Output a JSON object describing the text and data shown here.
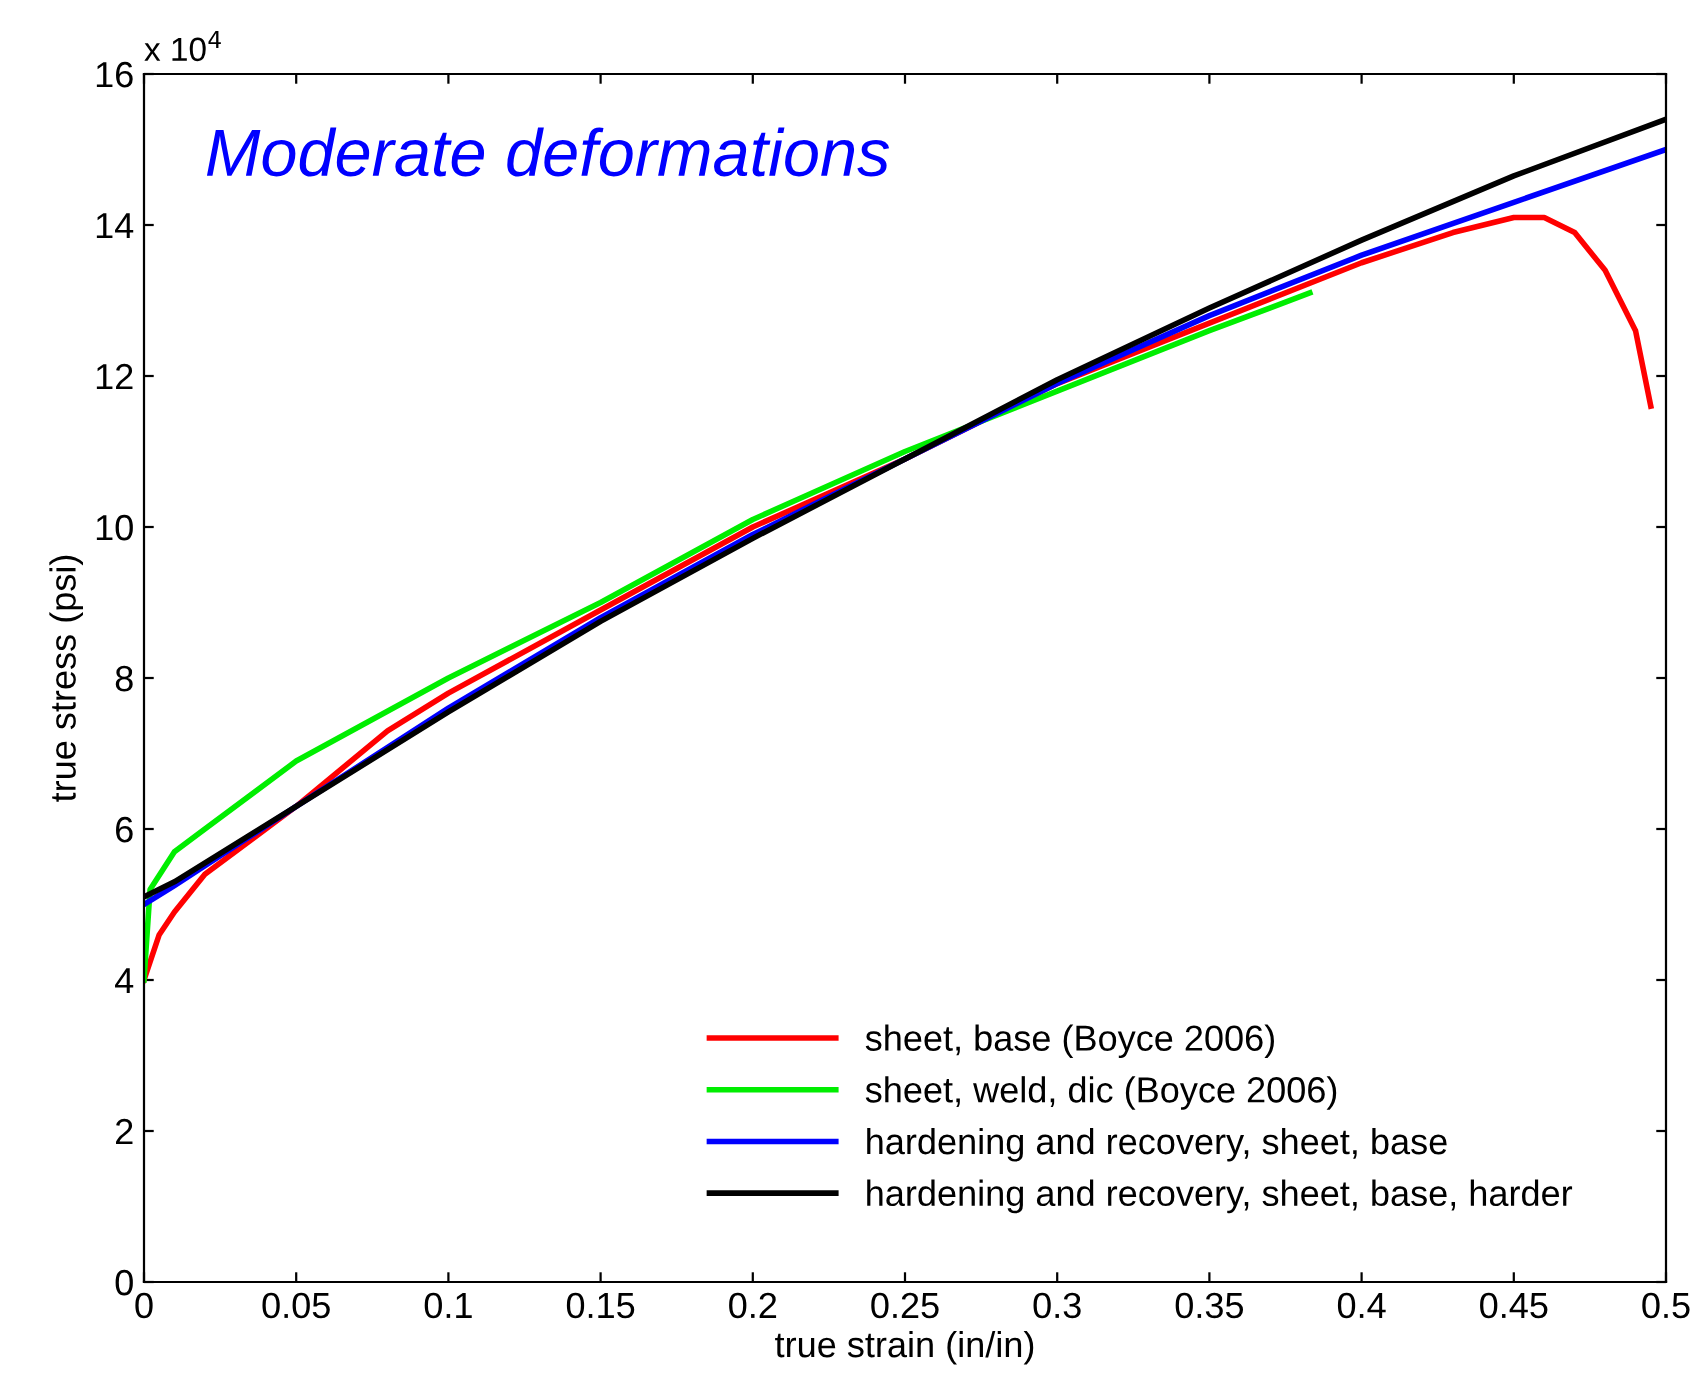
{
  "chart_data": {
    "type": "line",
    "xlabel": "true strain (in/in)",
    "ylabel": "true stress (psi)",
    "annotations": [
      "Moderate deformations",
      "x 10$^{4}$"
    ],
    "xlim": [
      0,
      0.5
    ],
    "xticks": [
      0,
      0.05,
      0.1,
      0.15,
      0.2,
      0.25,
      0.3,
      0.35,
      0.4,
      0.45,
      0.5
    ],
    "ylim": [
      0,
      16
    ],
    "yticks": [
      0,
      2,
      4,
      6,
      8,
      10,
      12,
      14,
      16
    ],
    "grid": false,
    "legend": "bottom right",
    "marker": "none",
    "line_style": "solid",
    "series": [
      {
        "name": "sheet, base (Boyce 2006)",
        "color": "#ff0000",
        "x": [
          0,
          0.005,
          0.01,
          0.02,
          0.05,
          0.08,
          0.1,
          0.15,
          0.2,
          0.25,
          0.3,
          0.35,
          0.4,
          0.43,
          0.45,
          0.46,
          0.47,
          0.48,
          0.49,
          0.495
        ],
        "values": [
          4.0,
          4.6,
          4.9,
          5.4,
          6.3,
          7.3,
          7.8,
          8.9,
          10.0,
          10.9,
          11.9,
          12.7,
          13.5,
          13.9,
          14.1,
          14.1,
          13.9,
          13.4,
          12.6,
          11.6
        ]
      },
      {
        "name": "sheet, weld, dic (Boyce 2006)",
        "color": "#00ee00",
        "x": [
          0,
          0.002,
          0.01,
          0.02,
          0.05,
          0.1,
          0.15,
          0.2,
          0.25,
          0.3,
          0.35,
          0.383
        ],
        "values": [
          4.0,
          5.2,
          5.7,
          6.0,
          6.9,
          8.0,
          9.0,
          10.1,
          11.0,
          11.8,
          12.6,
          13.1
        ]
      },
      {
        "name": "hardening and recovery, sheet, base",
        "color": "#0000ff",
        "x": [
          0,
          0.01,
          0.05,
          0.1,
          0.15,
          0.2,
          0.25,
          0.3,
          0.35,
          0.4,
          0.45,
          0.5
        ],
        "values": [
          5.0,
          5.25,
          6.3,
          7.6,
          8.8,
          9.9,
          10.9,
          11.9,
          12.8,
          13.6,
          14.3,
          15.0
        ]
      },
      {
        "name": "hardening and recovery, sheet, base, harder",
        "color": "#000000",
        "x": [
          0,
          0.01,
          0.05,
          0.1,
          0.15,
          0.2,
          0.25,
          0.3,
          0.35,
          0.4,
          0.45,
          0.5
        ],
        "values": [
          5.1,
          5.3,
          6.3,
          7.55,
          8.75,
          9.85,
          10.9,
          11.95,
          12.9,
          13.8,
          14.65,
          15.4
        ]
      }
    ]
  }
}
